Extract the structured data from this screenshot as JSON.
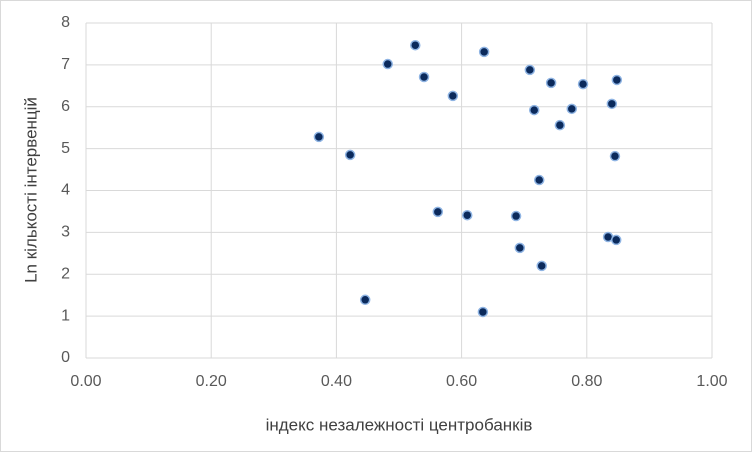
{
  "chart_data": {
    "type": "scatter",
    "x_label": "індекс незалежності центробанків",
    "y_label": "Ln кількості інтервенцій",
    "x": [
      0.526,
      0.636,
      0.482,
      0.54,
      0.709,
      0.743,
      0.794,
      0.848,
      0.586,
      0.716,
      0.776,
      0.84,
      0.757,
      0.372,
      0.422,
      0.845,
      0.724,
      0.562,
      0.609,
      0.687,
      0.834,
      0.847,
      0.693,
      0.728,
      0.446,
      0.634
    ],
    "values": [
      7.47,
      7.31,
      7.02,
      6.71,
      6.88,
      6.57,
      6.54,
      6.64,
      6.26,
      5.92,
      5.95,
      6.07,
      5.56,
      5.28,
      4.85,
      4.82,
      4.25,
      3.49,
      3.41,
      3.39,
      2.89,
      2.82,
      2.63,
      2.2,
      1.39,
      1.1
    ],
    "color": "#0b2a5c",
    "xlim": [
      0,
      1
    ],
    "xticks": [
      {
        "value": 0,
        "label": "0.00"
      },
      {
        "value": 0.2,
        "label": "0.20"
      },
      {
        "value": 0.4,
        "label": "0.40"
      },
      {
        "value": 0.6,
        "label": "0.60"
      },
      {
        "value": 0.8,
        "label": "0.80"
      },
      {
        "value": 1,
        "label": "1.00"
      }
    ],
    "ylim": [
      0,
      8
    ],
    "yticks": [
      0,
      1,
      2,
      3,
      4,
      5,
      6,
      7,
      8
    ],
    "grid": true
  }
}
